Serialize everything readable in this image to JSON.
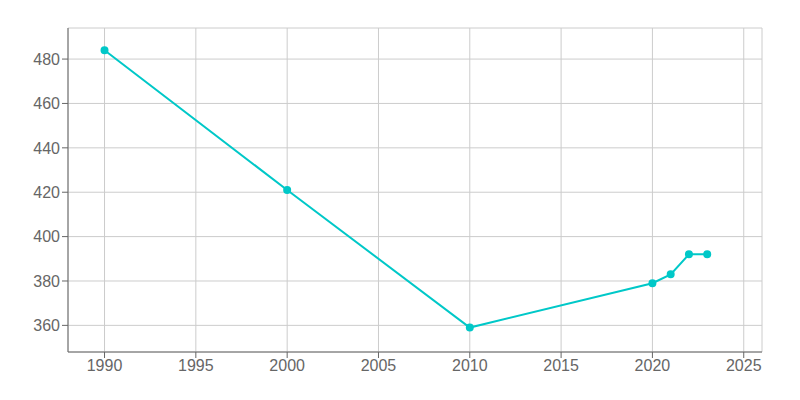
{
  "chart_data": {
    "type": "line",
    "x": [
      1990,
      2000,
      2010,
      2020,
      2021,
      2022,
      2023
    ],
    "values": [
      484,
      421,
      359,
      379,
      383,
      392,
      392
    ],
    "color": "#00c8c8",
    "marker": "circle",
    "xlim": [
      1988,
      2026
    ],
    "ylim": [
      348,
      494
    ],
    "xticks": [
      1990,
      1995,
      2000,
      2005,
      2010,
      2015,
      2020,
      2025
    ],
    "yticks": [
      360,
      380,
      400,
      420,
      440,
      460,
      480
    ],
    "grid": true
  }
}
